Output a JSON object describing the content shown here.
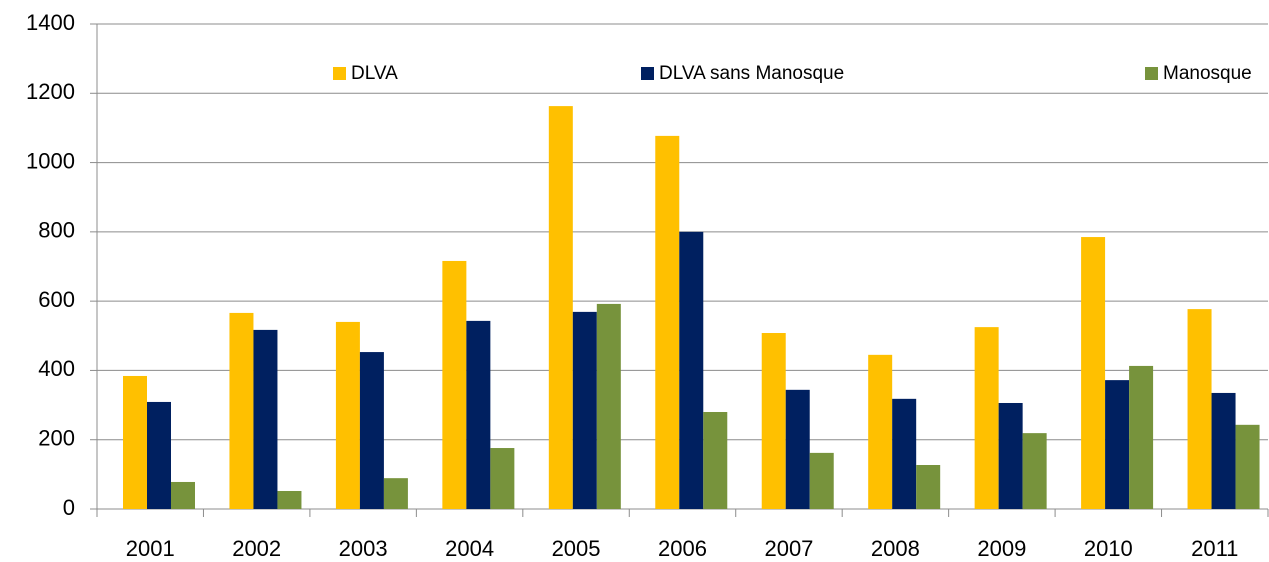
{
  "chart_data": {
    "type": "bar",
    "categories": [
      "2001",
      "2002",
      "2003",
      "2004",
      "2005",
      "2006",
      "2007",
      "2008",
      "2009",
      "2010",
      "2011"
    ],
    "series": [
      {
        "name": "DLVA",
        "color": "#ffc000",
        "values": [
          384,
          566,
          540,
          716,
          1163,
          1077,
          508,
          445,
          525,
          785,
          577
        ]
      },
      {
        "name": "DLVA sans Manosque",
        "color": "#002060",
        "values": [
          309,
          517,
          453,
          543,
          569,
          800,
          344,
          318,
          306,
          372,
          335
        ]
      },
      {
        "name": "Manosque",
        "color": "#77933c",
        "values": [
          78,
          52,
          89,
          176,
          592,
          280,
          162,
          127,
          219,
          413,
          243
        ]
      }
    ],
    "ylim": [
      0,
      1400
    ],
    "yticks": [
      0,
      200,
      400,
      600,
      800,
      1000,
      1200,
      1400
    ],
    "grid": true,
    "legend": "top"
  }
}
